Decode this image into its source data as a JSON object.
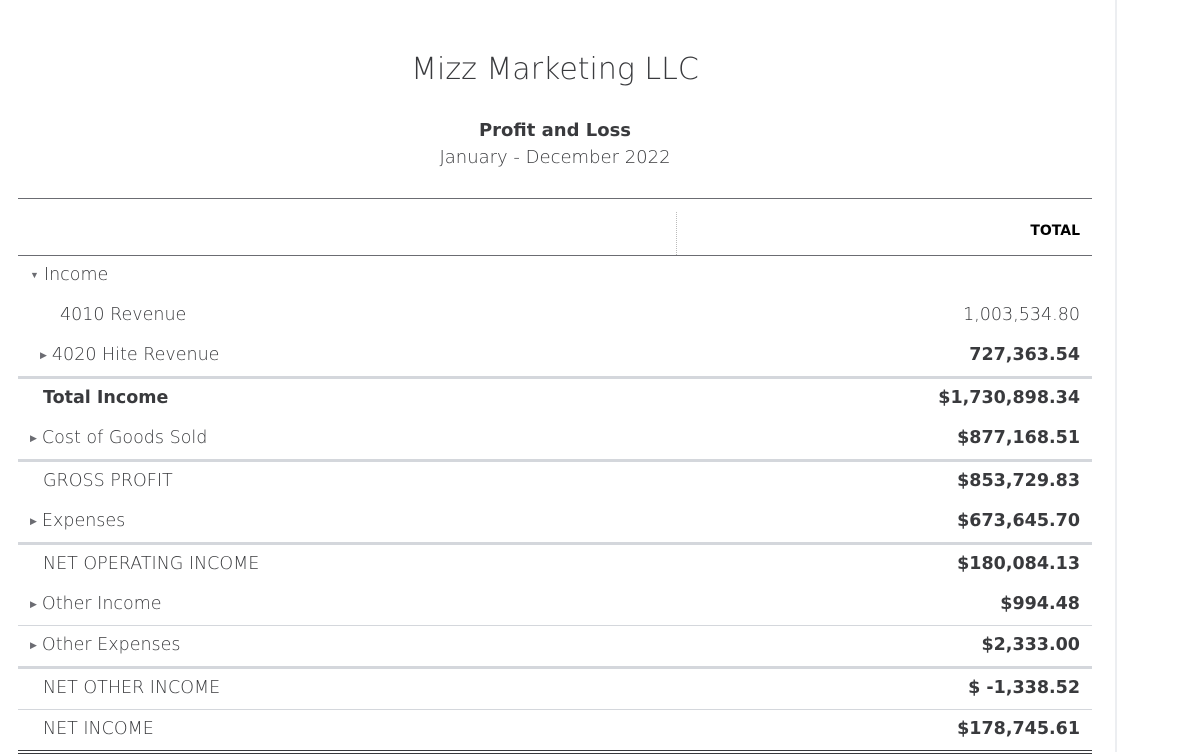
{
  "company": "Mizz Marketing LLC",
  "report_title": "Profit and Loss",
  "period": "January - December 2022",
  "column_header": "TOTAL",
  "rows": [
    {
      "label": "Income",
      "value": "",
      "toggle": "expanded"
    },
    {
      "label": "4010 Revenue",
      "value": "1,003,534.80",
      "toggle": "none"
    },
    {
      "label": "4020 Hite Revenue",
      "value": "727,363.54",
      "toggle": "collapsed"
    },
    {
      "label": "Total Income",
      "value": "$1,730,898.34",
      "toggle": "none"
    },
    {
      "label": "Cost of Goods Sold",
      "value": "$877,168.51",
      "toggle": "collapsed"
    },
    {
      "label": "GROSS PROFIT",
      "value": "$853,729.83",
      "toggle": "none"
    },
    {
      "label": "Expenses",
      "value": "$673,645.70",
      "toggle": "collapsed"
    },
    {
      "label": "NET OPERATING INCOME",
      "value": "$180,084.13",
      "toggle": "none"
    },
    {
      "label": "Other Income",
      "value": "$994.48",
      "toggle": "collapsed"
    },
    {
      "label": "Other Expenses",
      "value": "$2,333.00",
      "toggle": "collapsed"
    },
    {
      "label": "NET OTHER INCOME",
      "value": "$ -1,338.52",
      "toggle": "none"
    },
    {
      "label": "NET INCOME",
      "value": "$178,745.61",
      "toggle": "none"
    }
  ]
}
